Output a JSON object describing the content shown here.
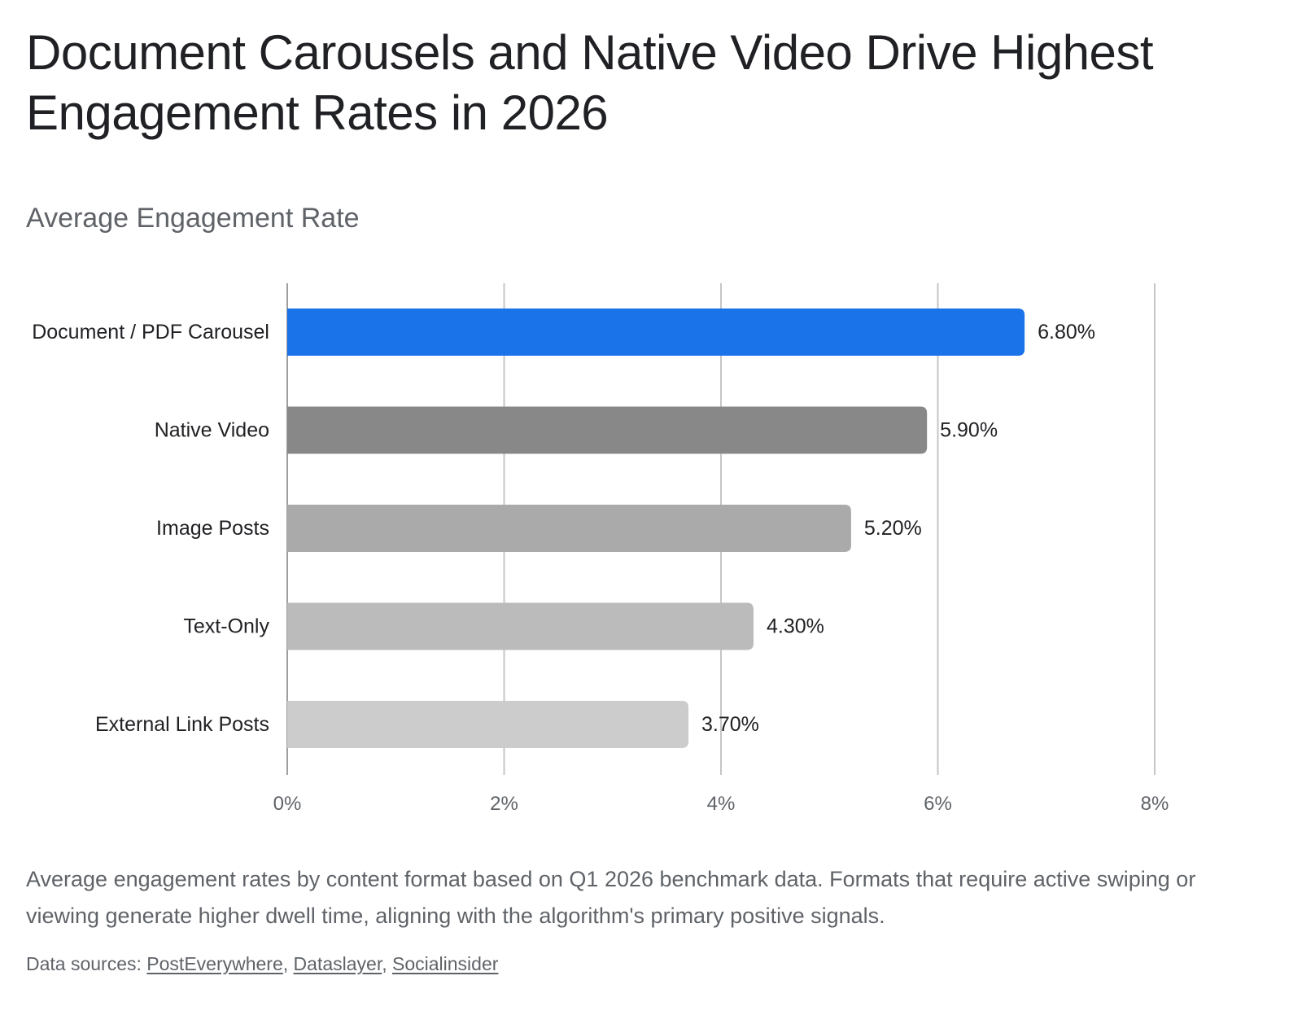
{
  "header": {
    "title": "Document Carousels and Native Video Drive Highest Engagement Rates in 2026",
    "subtitle": "Average Engagement Rate"
  },
  "chart_data": {
    "type": "bar",
    "orientation": "horizontal",
    "categories": [
      "Document / PDF Carousel",
      "Native Video",
      "Image Posts",
      "Text-Only",
      "External Link Posts"
    ],
    "values": [
      6.8,
      5.9,
      5.2,
      4.3,
      3.7
    ],
    "value_labels": [
      "6.80%",
      "5.90%",
      "5.20%",
      "4.30%",
      "3.70%"
    ],
    "bar_colors": [
      "#1a73e8",
      "#888888",
      "#aaaaaa",
      "#bbbbbb",
      "#cccccc"
    ],
    "xlim": [
      0,
      8
    ],
    "xticks": [
      0,
      2,
      4,
      6,
      8
    ],
    "xtick_labels": [
      "0%",
      "2%",
      "4%",
      "6%",
      "8%"
    ],
    "grid": "vertical",
    "legend": "none"
  },
  "footer": {
    "caption": "Average engagement rates by content format based on Q1 2026 benchmark data. Formats that require active swiping or viewing generate higher dwell time, aligning with the algorithm's primary positive signals.",
    "sources_label": "Data sources: ",
    "sources": [
      {
        "name": "PostEverywhere"
      },
      {
        "name": "Dataslayer"
      },
      {
        "name": "Socialinsider"
      }
    ]
  }
}
